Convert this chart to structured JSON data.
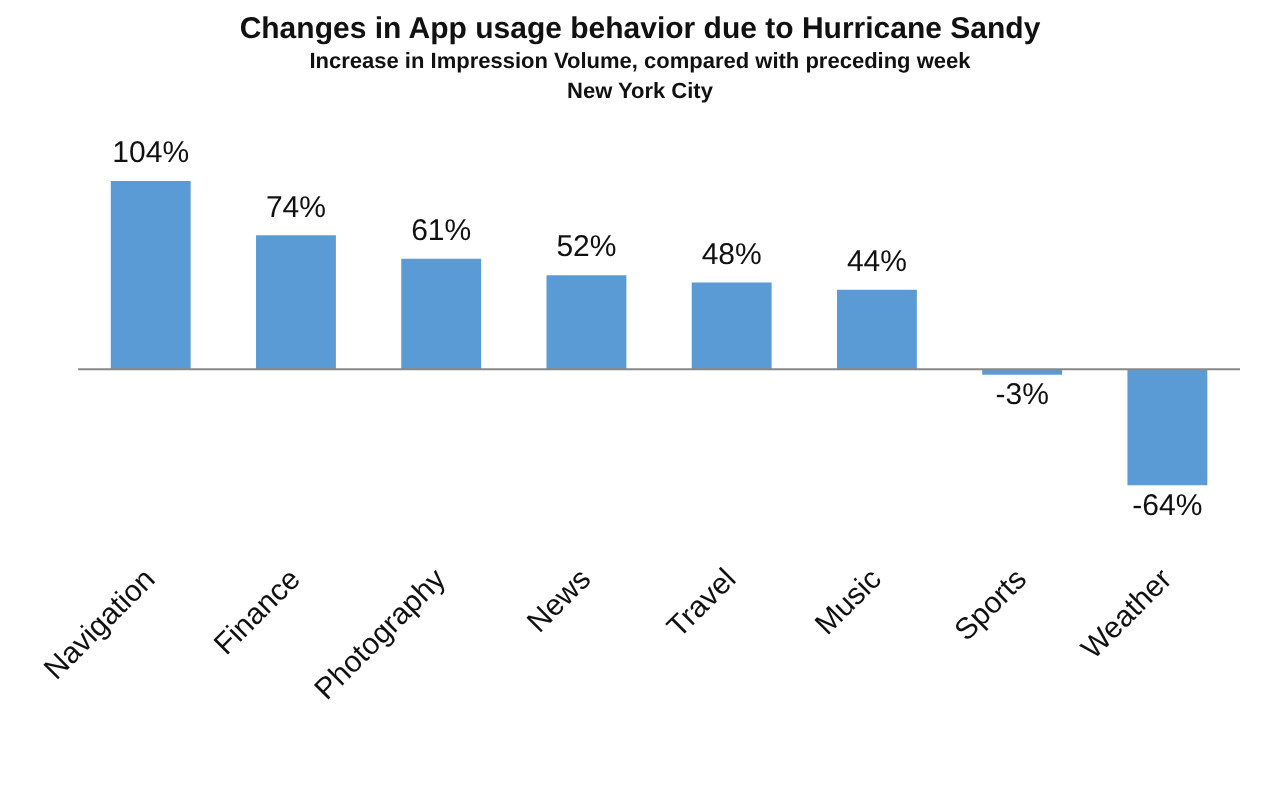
{
  "chart_data": {
    "type": "bar",
    "title": "Changes in App usage behavior due to Hurricane Sandy",
    "subtitle": "Increase in Impression Volume, compared with preceding week",
    "annotations": [
      "New York City"
    ],
    "categories": [
      "Navigation",
      "Finance",
      "Photography",
      "News",
      "Travel",
      "Music",
      "Sports",
      "Weather"
    ],
    "values": [
      104,
      74,
      61,
      52,
      48,
      44,
      -3,
      -64
    ],
    "value_labels": [
      "104%",
      "74%",
      "61%",
      "52%",
      "48%",
      "44%",
      "-3%",
      "-64%"
    ],
    "color": "#5b9bd5",
    "grid": false,
    "legend": false
  }
}
